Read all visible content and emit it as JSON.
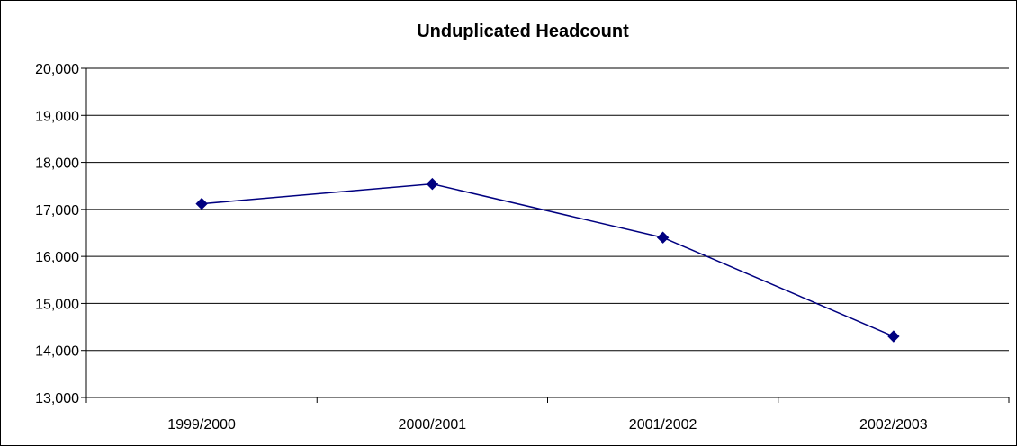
{
  "chart_data": {
    "type": "line",
    "title": "Unduplicated Headcount",
    "xlabel": "",
    "ylabel": "",
    "categories": [
      "1999/2000",
      "2000/2001",
      "2001/2002",
      "2002/2003"
    ],
    "series": [
      {
        "values": [
          17120,
          17540,
          16400,
          14300
        ]
      }
    ],
    "ylim": [
      13000,
      20000
    ],
    "y_ticks": [
      13000,
      14000,
      15000,
      16000,
      17000,
      18000,
      19000,
      20000
    ],
    "y_tick_labels": [
      "13,000",
      "14,000",
      "15,000",
      "16,000",
      "17,000",
      "18,000",
      "19,000",
      "20,000"
    ],
    "grid": true,
    "legend": "none",
    "colors": {
      "series": "#000080",
      "grid": "#000000",
      "axis": "#000000"
    }
  }
}
